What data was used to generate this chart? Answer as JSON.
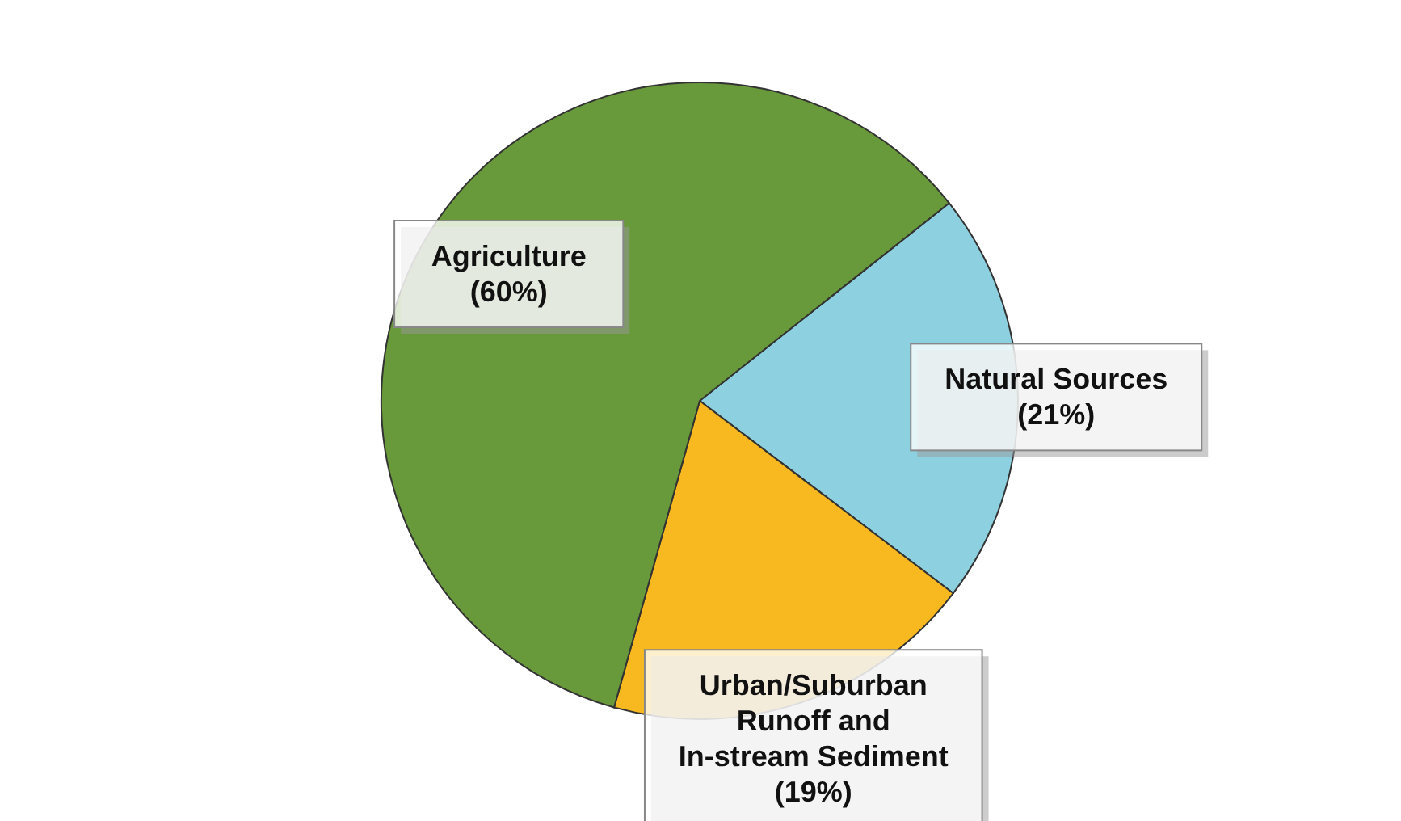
{
  "chart_data": {
    "type": "pie",
    "categories": [
      "Natural Sources",
      "Urban/Suburban Runoff and In-stream Sediment",
      "Agriculture"
    ],
    "values": [
      21,
      19,
      60
    ],
    "colors": [
      "#8dd0e0",
      "#f8b81f",
      "#68993a"
    ],
    "value_labels": [
      "(21%)",
      "(19%)",
      "(60%)"
    ]
  }
}
